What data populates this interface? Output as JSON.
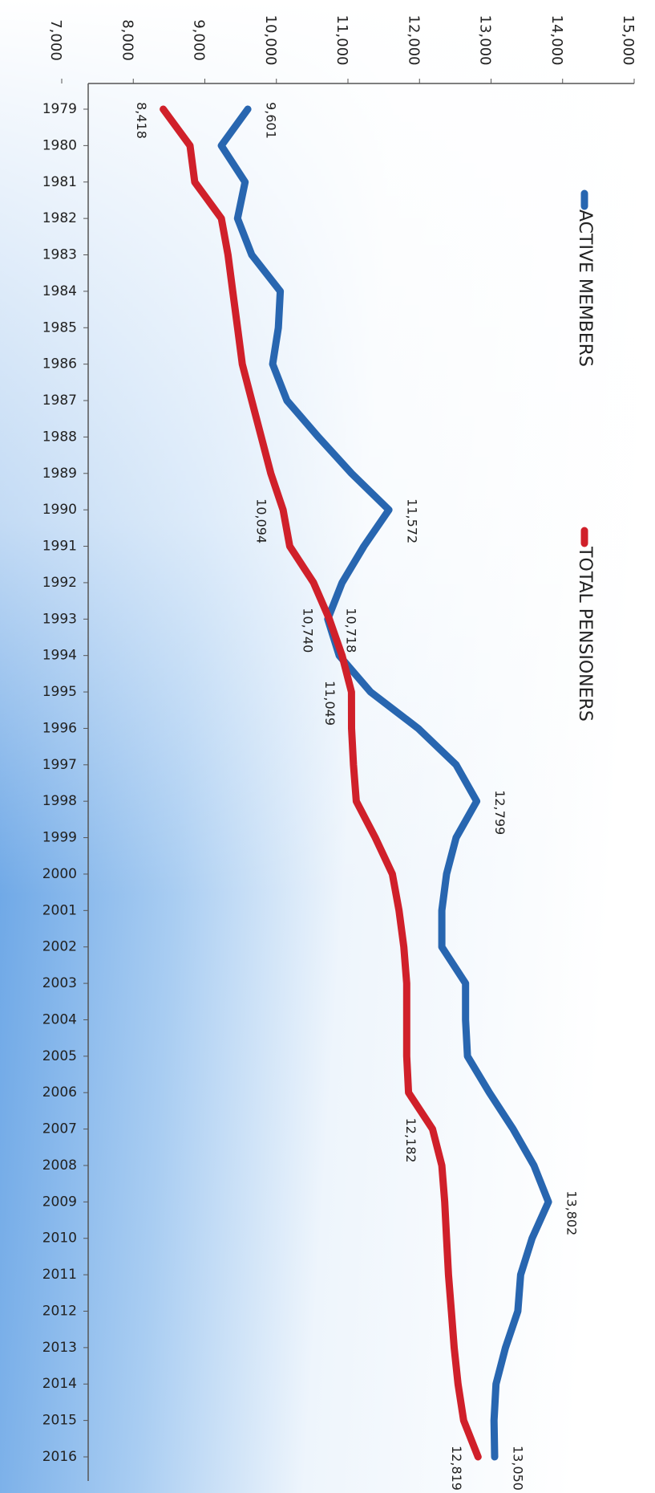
{
  "chart_data": {
    "type": "line",
    "orientation": "rotated",
    "legend": "right",
    "categories": [
      "1979",
      "1980",
      "1981",
      "1982",
      "1983",
      "1984",
      "1985",
      "1986",
      "1987",
      "1988",
      "1989",
      "1990",
      "1991",
      "1992",
      "1993",
      "1994",
      "1995",
      "1996",
      "1997",
      "1998",
      "1999",
      "2000",
      "2001",
      "2002",
      "2003",
      "2004",
      "2005",
      "2006",
      "2007",
      "2008",
      "2009",
      "2010",
      "2011",
      "2012",
      "2013",
      "2014",
      "2015",
      "2016"
    ],
    "series": [
      {
        "name": "ACTIVE MEMBERS",
        "color": "#2866b0",
        "values": [
          9601,
          9231,
          9563,
          9457,
          9656,
          10054,
          10028,
          9948,
          10147,
          10586,
          11050,
          11572,
          11223,
          10918,
          10718,
          10878,
          11316,
          11980,
          12511,
          12799,
          12511,
          12378,
          12312,
          12312,
          12644,
          12644,
          12671,
          12976,
          13308,
          13600,
          13802,
          13574,
          13414,
          13374,
          13202,
          13069,
          13042,
          13050
        ],
        "value_labels": [
          "9,601",
          null,
          null,
          null,
          null,
          null,
          null,
          null,
          null,
          null,
          null,
          "11,572",
          null,
          null,
          "10,718",
          null,
          null,
          null,
          null,
          "12,799",
          null,
          null,
          null,
          null,
          null,
          null,
          null,
          null,
          null,
          null,
          "13,802",
          null,
          null,
          null,
          null,
          null,
          null,
          "13,050"
        ]
      },
      {
        "name": "TOTAL PENSIONERS",
        "color": "#d0202a",
        "values": [
          8418,
          8793,
          8859,
          9231,
          9324,
          9390,
          9457,
          9523,
          9656,
          9789,
          9922,
          10094,
          10187,
          10519,
          10740,
          10918,
          11049,
          11050,
          11077,
          11117,
          11382,
          11621,
          11714,
          11781,
          11821,
          11821,
          11821,
          11847,
          12182,
          12312,
          12352,
          12378,
          12405,
          12445,
          12485,
          12538,
          12617,
          12819
        ],
        "value_labels": [
          "8,418",
          null,
          null,
          null,
          null,
          null,
          null,
          null,
          null,
          null,
          null,
          "10,094",
          null,
          null,
          "10,740",
          null,
          "11,049",
          null,
          null,
          null,
          null,
          null,
          null,
          null,
          null,
          null,
          null,
          null,
          "12,182",
          null,
          null,
          null,
          null,
          null,
          null,
          null,
          null,
          "12,819"
        ]
      }
    ],
    "ylim": [
      7000,
      15000
    ],
    "yticks": [
      {
        "value": 7000,
        "label": "7,000"
      },
      {
        "value": 8000,
        "label": "8,000"
      },
      {
        "value": 9000,
        "label": "9,000"
      },
      {
        "value": 10000,
        "label": "10,000"
      },
      {
        "value": 11000,
        "label": "11,000"
      },
      {
        "value": 12000,
        "label": "12,000"
      },
      {
        "value": 13000,
        "label": "13,000"
      },
      {
        "value": 14000,
        "label": "14,000"
      },
      {
        "value": 15000,
        "label": "15,000"
      }
    ]
  }
}
